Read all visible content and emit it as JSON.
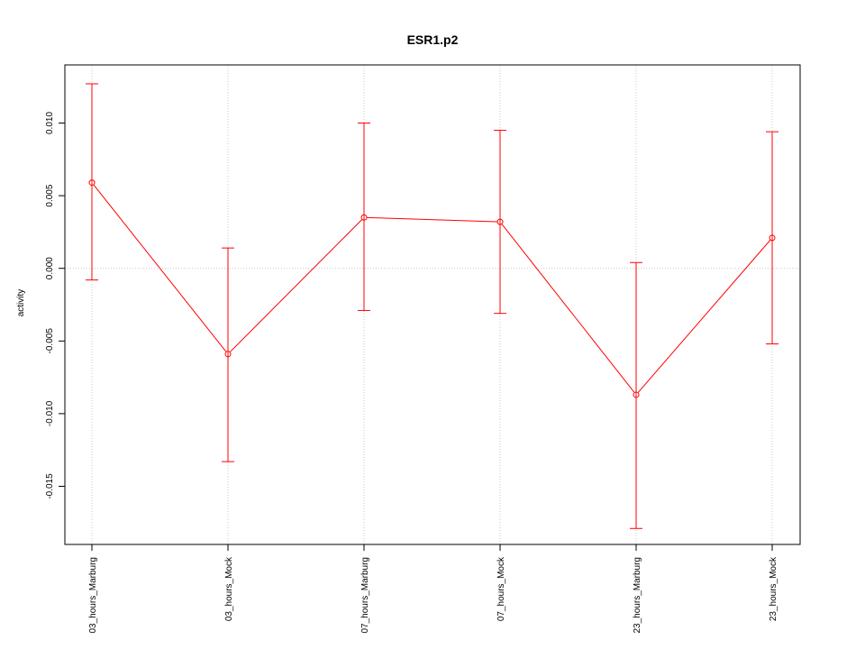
{
  "chart_data": {
    "type": "line",
    "title": "ESR1.p2",
    "xlabel": "",
    "ylabel": "activity",
    "categories": [
      "03_hours_Marburg",
      "03_hours_Mock",
      "07_hours_Marburg",
      "07_hours_Mock",
      "23_hours_Marburg",
      "23_hours_Mock"
    ],
    "series": [
      {
        "color": "#ff0000",
        "values": [
          0.0059,
          -0.0059,
          0.0035,
          0.0032,
          -0.0087,
          0.0021
        ],
        "error_upper": [
          0.0127,
          0.0014,
          0.01,
          0.0095,
          0.0004,
          0.0094
        ],
        "error_lower": [
          -0.0008,
          -0.0133,
          -0.0029,
          -0.0031,
          -0.0179,
          -0.0052
        ]
      }
    ],
    "ylim": [
      -0.019,
      0.014
    ],
    "yticks": [
      -0.015,
      -0.01,
      -0.005,
      0.0,
      0.005,
      0.01
    ],
    "ytick_labels": [
      "-0.015",
      "-0.010",
      "-0.005",
      "0.000",
      "0.005",
      "0.010"
    ],
    "grid": true,
    "colors": {
      "series": "#ff0000",
      "grid": "#c8c8c8",
      "axis": "#000000"
    }
  }
}
